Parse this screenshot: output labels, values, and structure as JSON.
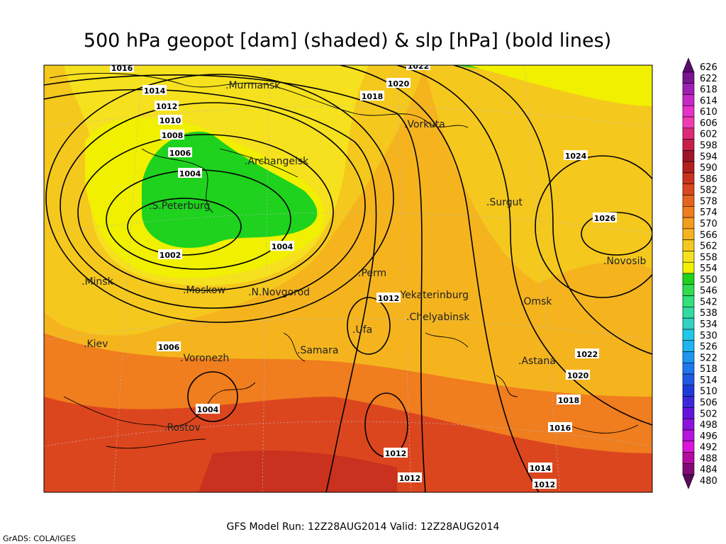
{
  "title": "500 hPa geopot [dam] (shaded) & slp [hPa] (bold lines)",
  "cities": [
    ".Murmansk",
    ".Archangelsk",
    ".Vorkuta",
    ".Surgut",
    ".Novosib",
    ".S.Peterburg",
    ".Minsk",
    ".Moskow",
    ".N.Novgorod",
    ".Perm",
    ".Yekaterinburg",
    ".Chelyabinsk",
    ".Omsk",
    ".Ufa",
    ".Kiev",
    ".Voronezh",
    ".Samara",
    ".Astana",
    ".Rostov"
  ],
  "isobar_labels": [
    1016,
    1014,
    1012,
    1010,
    1008,
    1006,
    1004,
    1002,
    1004,
    1006,
    1004,
    1012,
    1022,
    1020,
    1018,
    1024,
    1026,
    1022,
    1020,
    1018,
    1016,
    1012,
    1012,
    1014,
    1012
  ],
  "colorbar": {
    "levels": [
      626,
      622,
      618,
      614,
      610,
      606,
      602,
      598,
      594,
      590,
      586,
      582,
      578,
      574,
      570,
      566,
      562,
      558,
      554,
      550,
      546,
      542,
      538,
      534,
      530,
      526,
      522,
      518,
      514,
      510,
      506,
      502,
      498,
      496,
      492,
      488,
      484,
      480
    ],
    "colors": [
      "#5a0a6e",
      "#7a1490",
      "#a01eb4",
      "#c828c8",
      "#e632c8",
      "#f03cb4",
      "#dc2878",
      "#c81e4b",
      "#a01428",
      "#b41e1e",
      "#c8321e",
      "#dc461e",
      "#e6641e",
      "#f07d1e",
      "#f59b1e",
      "#f5b41e",
      "#f5c81e",
      "#f5e11e",
      "#f0f000",
      "#1ed21e",
      "#32dc50",
      "#32e17d",
      "#32dca0",
      "#32d2c3",
      "#1ec8e6",
      "#1eb4f0",
      "#1e96f0",
      "#1e78f0",
      "#1e5ae6",
      "#1e3cdc",
      "#3c28dc",
      "#6414dc",
      "#8c14dc",
      "#b414dc",
      "#dc14dc",
      "#b40aa0",
      "#820a78",
      "#5a0a5a"
    ]
  },
  "footer": "GFS Model Run: 12Z28AUG2014 Valid: 12Z28AUG2014",
  "credit": "GrADS: COLA/IGES"
}
